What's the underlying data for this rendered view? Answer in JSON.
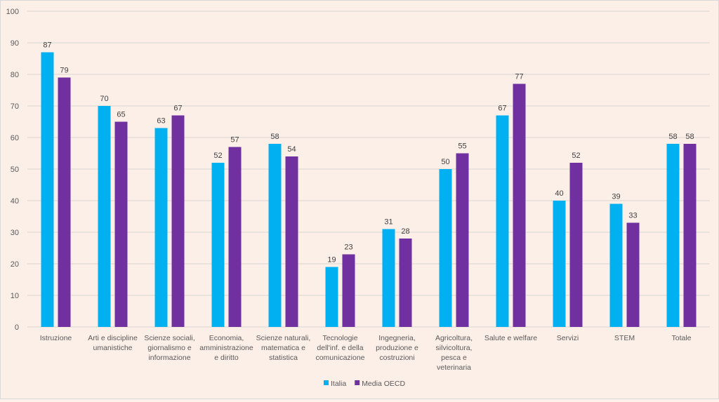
{
  "chart_data": {
    "type": "bar",
    "title": "",
    "xlabel": "",
    "ylabel": "",
    "ylim": [
      0,
      100
    ],
    "yticks": [
      0,
      10,
      20,
      30,
      40,
      50,
      60,
      70,
      80,
      90,
      100
    ],
    "grid": true,
    "legend_position": "bottom",
    "categories": [
      [
        "Istruzione"
      ],
      [
        "Arti e discipline",
        "umanistiche"
      ],
      [
        "Scienze sociali,",
        "giornalismo e",
        "informazione"
      ],
      [
        "Economia,",
        "amministrazione",
        "e diritto"
      ],
      [
        "Scienze naturali,",
        "matematica e",
        "statistica"
      ],
      [
        "Tecnologie",
        "dell'inf. e della",
        "comunicazione"
      ],
      [
        "Ingegneria,",
        "produzione e",
        "costruzioni"
      ],
      [
        "Agricoltura,",
        "silvicoltura,",
        "pesca e",
        "veterinaria"
      ],
      [
        "Salute e welfare"
      ],
      [
        "Servizi"
      ],
      [
        "STEM"
      ],
      [
        "Totale"
      ]
    ],
    "series": [
      {
        "name": "Italia",
        "color": "#00b0f0",
        "values": [
          87,
          70,
          63,
          52,
          58,
          19,
          31,
          50,
          67,
          40,
          39,
          58
        ]
      },
      {
        "name": "Media OECD",
        "color": "#7030a0",
        "values": [
          79,
          65,
          67,
          57,
          54,
          23,
          28,
          55,
          77,
          52,
          33,
          58
        ]
      }
    ]
  }
}
